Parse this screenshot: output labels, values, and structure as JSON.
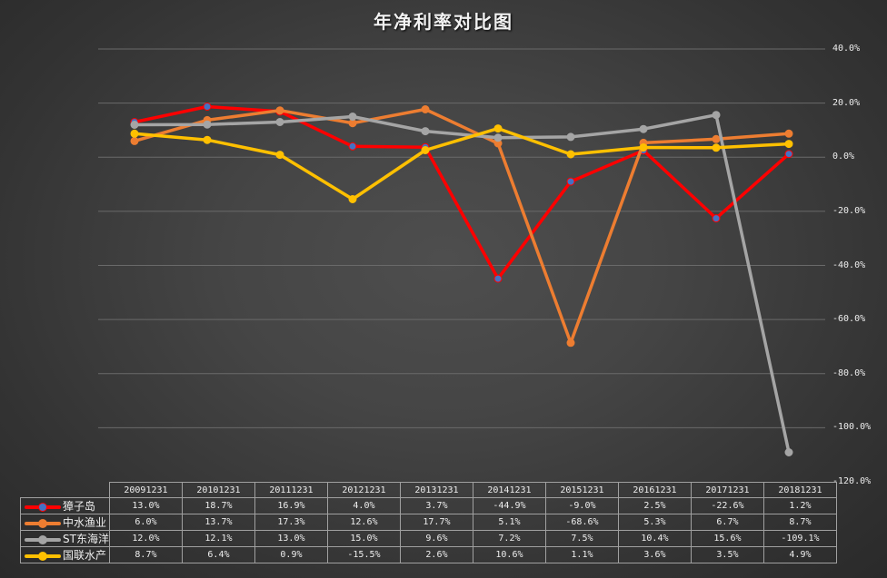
{
  "title": "年净利率对比图",
  "y_axis": {
    "ticks": [
      "40.0%",
      "20.0%",
      "0.0%",
      "-20.0%",
      "-40.0%",
      "-60.0%",
      "-80.0%",
      "-100.0%",
      "-120.0%"
    ]
  },
  "table": {
    "headers": [
      "20091231",
      "20101231",
      "20111231",
      "20121231",
      "20131231",
      "20141231",
      "20151231",
      "20161231",
      "20171231",
      "20181231"
    ],
    "rows": [
      {
        "name": "獐子岛",
        "color": "#ff0000",
        "marker": "#4472c4",
        "cells": [
          "13.0%",
          "18.7%",
          "16.9%",
          "4.0%",
          "3.7%",
          "-44.9%",
          "-9.0%",
          "2.5%",
          "-22.6%",
          "1.2%"
        ]
      },
      {
        "name": "中水渔业",
        "color": "#ed7d31",
        "marker": "#ed7d31",
        "cells": [
          "6.0%",
          "13.7%",
          "17.3%",
          "12.6%",
          "17.7%",
          "5.1%",
          "-68.6%",
          "5.3%",
          "6.7%",
          "8.7%"
        ]
      },
      {
        "name": "ST东海洋",
        "color": "#a5a5a5",
        "marker": "#a5a5a5",
        "cells": [
          "12.0%",
          "12.1%",
          "13.0%",
          "15.0%",
          "9.6%",
          "7.2%",
          "7.5%",
          "10.4%",
          "15.6%",
          "-109.1%"
        ]
      },
      {
        "name": "国联水产",
        "color": "#ffc000",
        "marker": "#ffc000",
        "cells": [
          "8.7%",
          "6.4%",
          "0.9%",
          "-15.5%",
          "2.6%",
          "10.6%",
          "1.1%",
          "3.6%",
          "3.5%",
          "4.9%"
        ]
      }
    ]
  },
  "chart_data": {
    "type": "line",
    "title": "年净利率对比图",
    "xlabel": "",
    "ylabel": "",
    "ylim": [
      -120,
      40
    ],
    "y_ticks": [
      40,
      20,
      0,
      -20,
      -40,
      -60,
      -80,
      -100,
      -120
    ],
    "y_axis_position": "right",
    "grid": true,
    "legend_position": "data-table-left",
    "categories": [
      "20091231",
      "20101231",
      "20111231",
      "20121231",
      "20131231",
      "20141231",
      "20151231",
      "20161231",
      "20171231",
      "20181231"
    ],
    "series": [
      {
        "name": "獐子岛",
        "color": "#ff0000",
        "values": [
          13.0,
          18.7,
          16.9,
          4.0,
          3.7,
          -44.9,
          -9.0,
          2.5,
          -22.6,
          1.2
        ]
      },
      {
        "name": "中水渔业",
        "color": "#ed7d31",
        "values": [
          6.0,
          13.7,
          17.3,
          12.6,
          17.7,
          5.1,
          -68.6,
          5.3,
          6.7,
          8.7
        ]
      },
      {
        "name": "ST东海洋",
        "color": "#a5a5a5",
        "values": [
          12.0,
          12.1,
          13.0,
          15.0,
          9.6,
          7.2,
          7.5,
          10.4,
          15.6,
          -109.1
        ]
      },
      {
        "name": "国联水产",
        "color": "#ffc000",
        "values": [
          8.7,
          6.4,
          0.9,
          -15.5,
          2.6,
          10.6,
          1.1,
          3.6,
          3.5,
          4.9
        ]
      }
    ]
  }
}
